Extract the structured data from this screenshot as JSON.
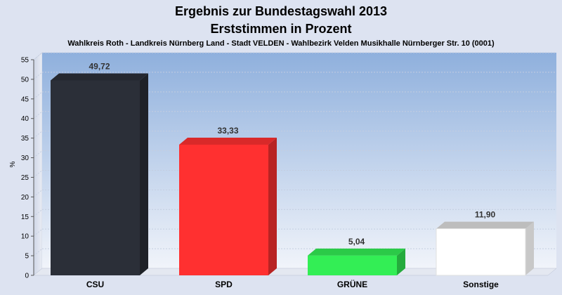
{
  "chart_data": {
    "type": "bar",
    "title": "Ergebnis zur Bundestagswahl 2013",
    "subtitle": "Erststimmen in Prozent",
    "caption": "Wahlkreis Roth - Landkreis Nürnberg Land - Stadt VELDEN - Wahlbezirk Velden Musikhalle Nürnberger Str. 10 (0001)",
    "ylabel": "%",
    "xlabel": "",
    "ylim": [
      0,
      55
    ],
    "yticks": [
      0,
      5,
      10,
      15,
      20,
      25,
      30,
      35,
      40,
      45,
      50,
      55
    ],
    "grid": true,
    "categories": [
      "CSU",
      "SPD",
      "GRÜNE",
      "Sonstige"
    ],
    "values": [
      49.72,
      33.33,
      5.04,
      11.9
    ],
    "value_labels": [
      "49,72",
      "33,33",
      "5,04",
      "11,90"
    ],
    "colors": [
      "#2b2f38",
      "#ff3030",
      "#33ee55",
      "#ffffff"
    ]
  }
}
